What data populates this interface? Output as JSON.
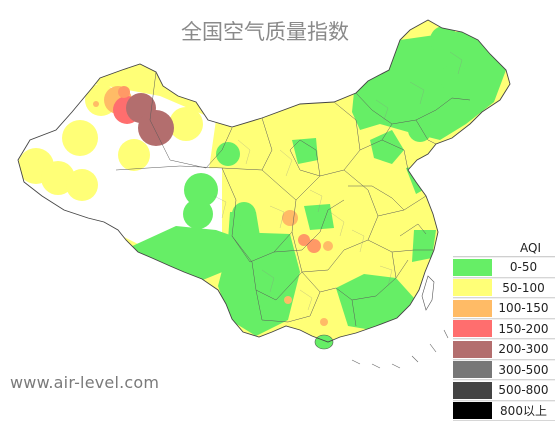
{
  "title": "全国空气质量指数",
  "watermark": "www.air-level.com",
  "legend": {
    "title": "AQI",
    "items": [
      {
        "label": "0-50",
        "color": "#66ee66"
      },
      {
        "label": "50-100",
        "color": "#ffff77"
      },
      {
        "label": "100-150",
        "color": "#ffbb66"
      },
      {
        "label": "150-200",
        "color": "#ff6e6e"
      },
      {
        "label": "200-300",
        "color": "#b36e6e"
      },
      {
        "label": "300-500",
        "color": "#777777"
      },
      {
        "label": "500-800",
        "color": "#444444"
      },
      {
        "label": "800以上",
        "color": "#000000"
      }
    ]
  }
}
